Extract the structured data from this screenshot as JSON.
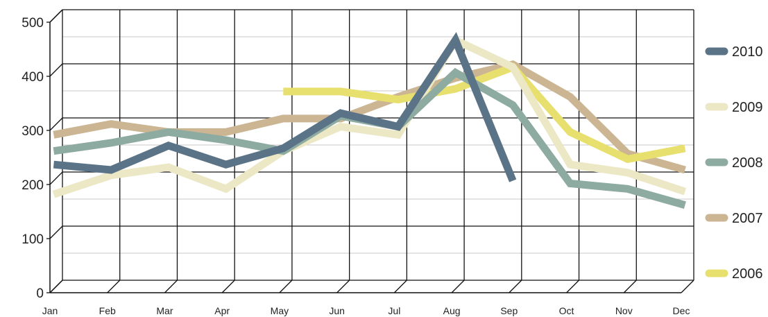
{
  "chart_data": {
    "type": "line",
    "title": "",
    "xlabel": "",
    "ylabel": "",
    "categories": [
      "Jan",
      "Feb",
      "Mar",
      "Apr",
      "May",
      "Jun",
      "Jul",
      "Aug",
      "Sep",
      "Oct",
      "Nov",
      "Dec"
    ],
    "ylim": [
      0,
      500
    ],
    "yticks": [
      0,
      100,
      200,
      300,
      400,
      500
    ],
    "grid": true,
    "legend_position": "right",
    "series": [
      {
        "name": "2010",
        "color": "#5a7387",
        "values": [
          230,
          220,
          265,
          230,
          260,
          325,
          300,
          460,
          200,
          null,
          null,
          null
        ]
      },
      {
        "name": "2009",
        "color": "#ece7c4",
        "values": [
          175,
          210,
          225,
          185,
          255,
          300,
          285,
          460,
          410,
          230,
          215,
          180
        ]
      },
      {
        "name": "2008",
        "color": "#8eaba1",
        "values": [
          255,
          270,
          290,
          275,
          255,
          320,
          300,
          400,
          340,
          195,
          185,
          155
        ]
      },
      {
        "name": "2007",
        "color": "#cbb593",
        "values": [
          285,
          305,
          290,
          290,
          315,
          315,
          355,
          390,
          415,
          355,
          250,
          220
        ]
      },
      {
        "name": "2006",
        "color": "#e8e06e",
        "values": [
          null,
          null,
          null,
          null,
          365,
          365,
          350,
          370,
          410,
          290,
          240,
          260
        ]
      }
    ],
    "draw_order": [
      "2007",
      "2006",
      "2009",
      "2008",
      "2010"
    ]
  }
}
